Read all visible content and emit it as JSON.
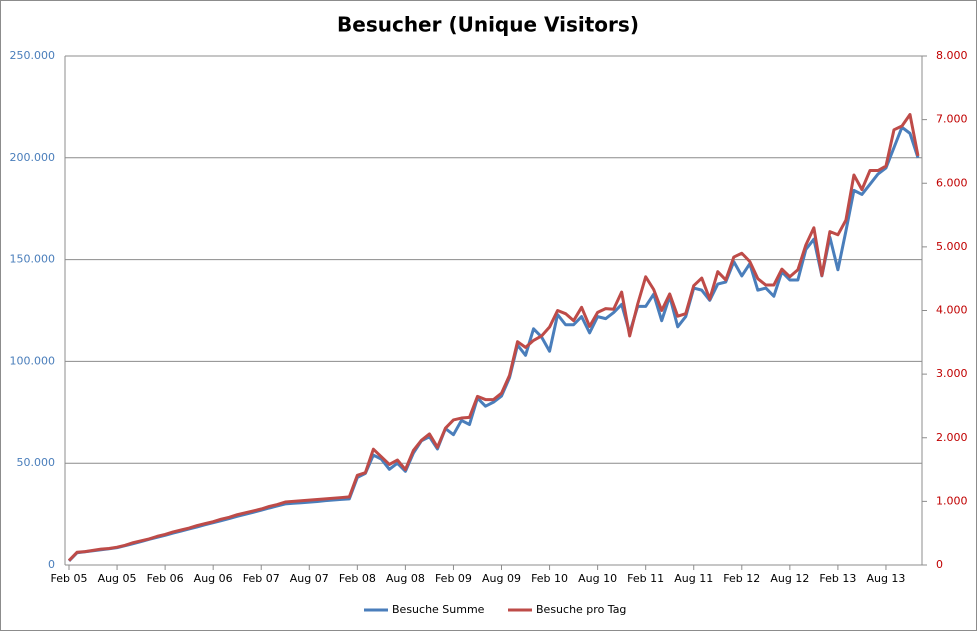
{
  "chart_data": {
    "type": "line",
    "title": "Besucher (Unique Visitors)",
    "categories": [
      "Feb 05",
      null,
      null,
      null,
      null,
      null,
      "Aug 05",
      null,
      null,
      null,
      null,
      null,
      "Feb 06",
      null,
      null,
      null,
      null,
      null,
      "Aug 06",
      null,
      null,
      null,
      null,
      null,
      "Feb 07",
      null,
      null,
      null,
      null,
      null,
      "Aug 07",
      null,
      null,
      null,
      null,
      null,
      "Feb 08",
      null,
      null,
      null,
      null,
      null,
      "Aug 08",
      null,
      null,
      null,
      null,
      null,
      "Feb 09",
      null,
      null,
      null,
      null,
      null,
      "Aug 09",
      null,
      null,
      null,
      null,
      null,
      "Feb 10",
      null,
      null,
      null,
      null,
      null,
      "Aug 10",
      null,
      null,
      null,
      null,
      null,
      "Feb 11",
      null,
      null,
      null,
      null,
      null,
      "Aug 11",
      null,
      null,
      null,
      null,
      null,
      "Feb 12",
      null,
      null,
      null,
      null,
      null,
      "Aug 12",
      null,
      null,
      null,
      null,
      null,
      "Feb 13",
      null,
      null,
      null,
      null,
      null,
      "Aug 13",
      null,
      null,
      null,
      null
    ],
    "series": [
      {
        "name": "Besuche Summe",
        "color": "#4a7ebb",
        "axis": "y",
        "values": [
          2000,
          6000,
          6500,
          7000,
          7500,
          8000,
          8500,
          9500,
          10500,
          11500,
          12600,
          13600,
          14600,
          15700,
          16700,
          17700,
          18700,
          19800,
          20800,
          21800,
          22800,
          23900,
          24900,
          25900,
          26900,
          28000,
          29000,
          30000,
          30300,
          30600,
          30900,
          31200,
          31600,
          31900,
          32200,
          32500,
          43000,
          45000,
          54000,
          52000,
          47000,
          50000,
          46000,
          55000,
          61000,
          63000,
          57000,
          67000,
          64000,
          71000,
          69000,
          82000,
          78000,
          80000,
          83000,
          92000,
          108000,
          103000,
          116000,
          112000,
          105000,
          123000,
          118000,
          118000,
          122000,
          114000,
          122000,
          121000,
          124000,
          128000,
          114000,
          127000,
          127000,
          133000,
          120000,
          132000,
          117000,
          122000,
          136000,
          135000,
          130000,
          138000,
          139000,
          149000,
          142000,
          148000,
          135000,
          136000,
          132000,
          144000,
          140000,
          140000,
          155000,
          160000,
          142000,
          161000,
          145000,
          164000,
          184000,
          182000,
          187000,
          192000,
          195000,
          205000,
          215000,
          212000,
          200000
        ]
      },
      {
        "name": "Besuche pro Tag",
        "color": "#be4b48",
        "axis": "y2",
        "values": [
          70,
          200,
          210,
          230,
          250,
          260,
          280,
          310,
          350,
          380,
          410,
          450,
          480,
          520,
          550,
          580,
          620,
          650,
          680,
          720,
          750,
          790,
          820,
          850,
          880,
          920,
          950,
          990,
          1000,
          1010,
          1020,
          1030,
          1040,
          1050,
          1060,
          1070,
          1410,
          1450,
          1820,
          1700,
          1580,
          1650,
          1500,
          1800,
          1960,
          2060,
          1850,
          2150,
          2280,
          2310,
          2320,
          2650,
          2600,
          2600,
          2700,
          2980,
          3510,
          3420,
          3530,
          3600,
          3740,
          4000,
          3950,
          3840,
          4050,
          3750,
          3970,
          4030,
          4020,
          4290,
          3600,
          4100,
          4530,
          4330,
          4000,
          4260,
          3910,
          3950,
          4390,
          4510,
          4180,
          4610,
          4480,
          4840,
          4900,
          4770,
          4500,
          4400,
          4400,
          4650,
          4530,
          4640,
          5030,
          5300,
          4550,
          5240,
          5190,
          5420,
          6130,
          5900,
          6200,
          6200,
          6270,
          6840,
          6900,
          7080,
          6430
        ]
      }
    ],
    "ylim": [
      0,
      250000
    ],
    "yticks": [
      0,
      {
        "value": 50000,
        "label": "50.000"
      },
      {
        "value": 100000,
        "label": "100.000"
      },
      {
        "value": 150000,
        "label": "150.000"
      },
      {
        "value": 200000,
        "label": "200.000"
      },
      {
        "value": 250000,
        "label": "250.000"
      }
    ],
    "y2lim": [
      0,
      8000
    ],
    "y2ticks": [
      0,
      {
        "value": 1000,
        "label": "1.000"
      },
      {
        "value": 2000,
        "label": "2.000"
      },
      {
        "value": 3000,
        "label": "3.000"
      },
      {
        "value": 4000,
        "label": "4.000"
      },
      {
        "value": 5000,
        "label": "5.000"
      },
      {
        "value": 6000,
        "label": "6.000"
      },
      {
        "value": 7000,
        "label": "7.000"
      },
      {
        "value": 8000,
        "label": "8.000"
      }
    ],
    "grid": true,
    "legend": "bottom"
  }
}
